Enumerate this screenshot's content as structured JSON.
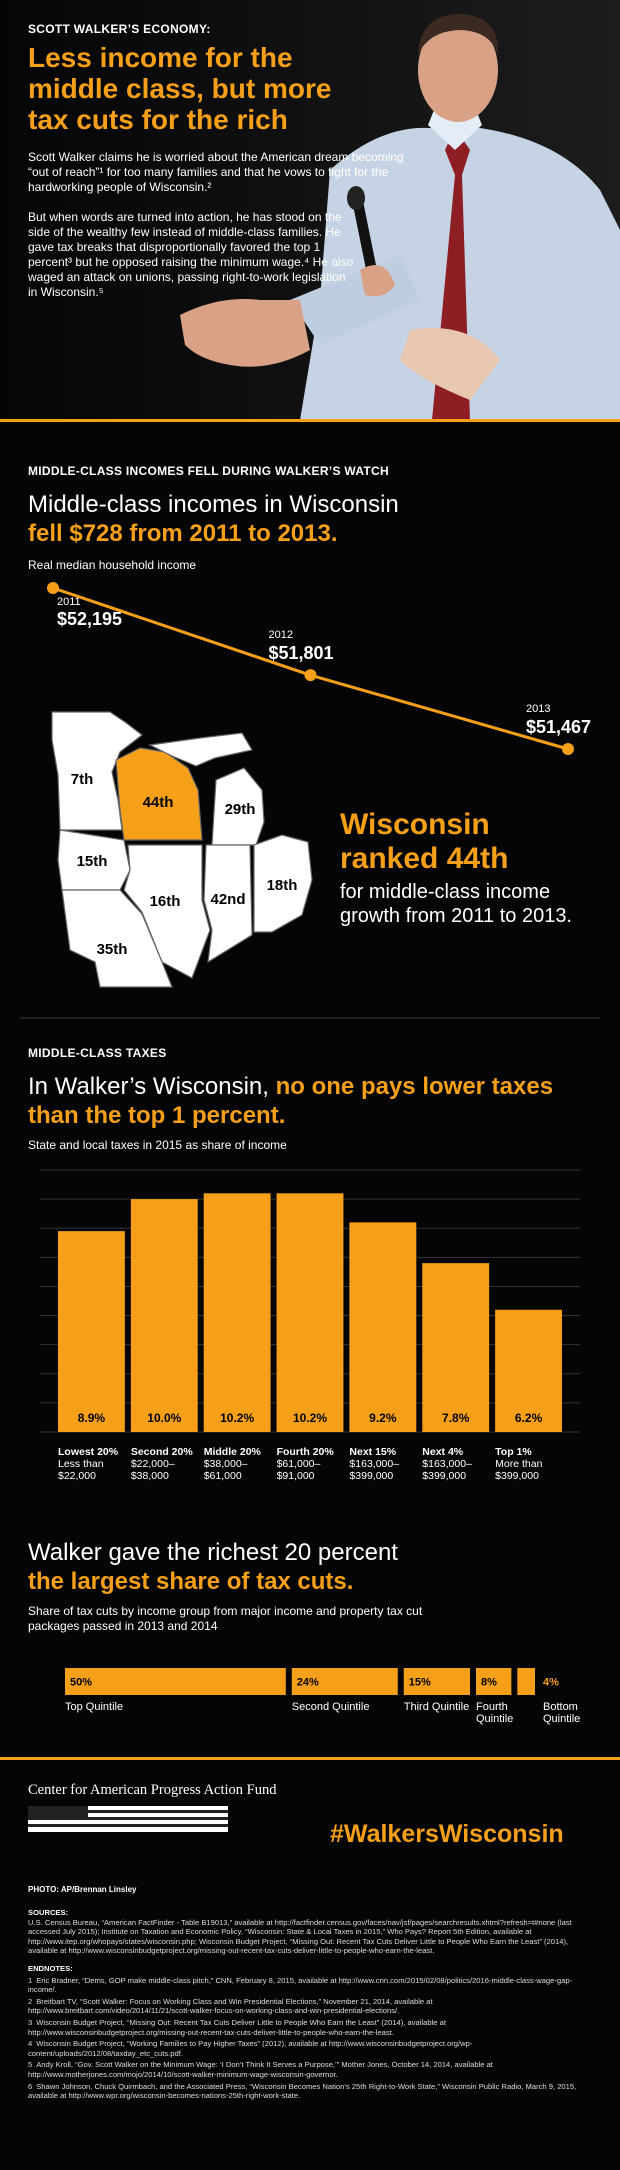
{
  "header": {
    "label": "SCOTT WALKER’S ECONOMY:",
    "title": "Less income for the middle class, but more tax cuts for the rich",
    "paragraphs": [
      "Scott Walker claims he is worried about the American dream becoming “out of reach”¹ for too many families and that he vows to fight for the hardworking people of Wisconsin.²",
      "But when words are turned into action, he has stood on the side of the wealthy few instead of middle-class families. He gave tax breaks that disproportionally favored the top 1 percent³ but he opposed raising the minimum wage.⁴ He also waged an attack on unions, passing right-to-work legislation in Wisconsin.⁵"
    ]
  },
  "chart_data": [
    {
      "type": "line",
      "section_label": "MIDDLE-CLASS INCOMES FELL DURING WALKER’S WATCH",
      "title": "Middle-class incomes in Wisconsin",
      "title_emphasis": "fell $728 from 2011 to 2013.",
      "subtitle": "Real median household income",
      "x": [
        "2011",
        "2012",
        "2013"
      ],
      "values": [
        52195,
        51801,
        51467
      ],
      "value_labels": [
        "$52,195",
        "$51,801",
        "$51,467"
      ],
      "color": "#f6a01a"
    },
    {
      "type": "bar",
      "section_label": "MIDDLE-CLASS TAXES",
      "title": "In Walker’s Wisconsin,",
      "title_emphasis": "no one pays lower taxes than the top 1 percent.",
      "subtitle": "State and local taxes in 2015 as share of income",
      "categories": [
        "Lowest 20%",
        "Second 20%",
        "Middle 20%",
        "Fourth 20%",
        "Next 15%",
        "Next 4%",
        "Top 1%"
      ],
      "category_ranges": [
        "Less than $22,000",
        "$22,000–$38,000",
        "$38,000–$61,000",
        "$61,000–$91,000",
        "$163,000–$399,000",
        "$163,000–$399,000",
        "More than $399,000"
      ],
      "values": [
        8.9,
        10.0,
        10.2,
        10.2,
        9.2,
        7.8,
        6.2
      ],
      "value_labels": [
        "8.9%",
        "10.0%",
        "10.2%",
        "10.2%",
        "9.2%",
        "7.8%",
        "6.2%"
      ],
      "color": "#f6a01a",
      "ylim": [
        2,
        11
      ],
      "yticks": [
        2,
        3,
        4,
        5,
        6,
        7,
        8,
        9,
        10,
        11
      ],
      "grid": true
    },
    {
      "type": "stackedbar",
      "title": "Walker gave the richest 20 percent",
      "title_emphasis": "the largest share of tax cuts.",
      "subtitle": "Share of tax cuts by income group from major income and property tax cut packages passed in 2013 and 2014",
      "series": [
        {
          "name": "Top Quintile",
          "color": "#f6a01a",
          "values": [
            50
          ],
          "value_labels": [
            "50%"
          ]
        },
        {
          "name": "Second Quintile",
          "color": "#f6a01a",
          "values": [
            24
          ],
          "value_labels": [
            "24%"
          ]
        },
        {
          "name": "Third Quintile",
          "color": "#f6a01a",
          "values": [
            15
          ],
          "value_labels": [
            "15%"
          ]
        },
        {
          "name": "Fourth Quintile",
          "color": "#f6a01a",
          "values": [
            8
          ],
          "value_labels": [
            "8%"
          ]
        },
        {
          "name": "Bottom Quintile",
          "color": "#f6a01a",
          "values": [
            4
          ],
          "value_labels": [
            "4%"
          ]
        }
      ]
    }
  ],
  "map": {
    "ranks": [
      "7th",
      "44th",
      "29th",
      "15th",
      "16th",
      "42nd",
      "18th",
      "35th"
    ],
    "callout_title": "Wisconsin ranked 44th",
    "callout_text": "for middle-class income growth from 2011 to 2013."
  },
  "footer": {
    "logo": "Center for American Progress Action Fund",
    "hashtag": "#WalkersWisconsin",
    "photo_credit": "PHOTO: AP/Brennan Linsley",
    "sources_label": "SOURCES:",
    "sources": "U.S. Census Bureau, “American FactFinder - Table B19013,” available at http://factfinder.census.gov/faces/nav/jsf/pages/searchresults.xhtml?refresh=t#none (last accessed July 2015); Institute on Taxation and Economic Policy, “Wisconsin: State & Local Taxes in 2015,” Who Pays? Report 5th Edition, available at http://www.itep.org/whopays/states/wisconsin.php; Wisconsin Budget Project, “Missing Out: Recent Tax Cuts Deliver Little to People Who Earn the Least” (2014), available at http://www.wisconsinbudgetproject.org/missing-out-recent-tax-cuts-deliver-little-to-people-who-earn-the-least.",
    "endnotes_label": "ENDNOTES:",
    "endnotes": [
      {
        "number": 1,
        "text": "Eric Bradner, “Dems, GOP make middle-class pitch,” CNN, February 8, 2015, available at http://www.cnn.com/2015/02/08/politics/2016-middle-class-wage-gap-income/."
      },
      {
        "number": 2,
        "text": "Breitbart TV, “Scott Walker: Focus on Working Class and Win Presidential Elections,” November 21, 2014, available at http://www.breitbart.com/video/2014/11/21/scott-walker-focus-on-working-class-and-win-presidential-elections/."
      },
      {
        "number": 3,
        "text": "Wisconsin Budget Project, “Missing Out: Recent Tax Cuts Deliver Little to People Who Earn the Least” (2014), available at http://www.wisconsinbudgetproject.org/missing-out-recent-tax-cuts-deliver-little-to-people-who-earn-the-least."
      },
      {
        "number": 4,
        "text": "Wisconsin Budget Project, “Working Families to Pay Higher Taxes” (2012), available at http://www.wisconsinbudgetproject.org/wp-content/uploads/2012/08/taxday_etc_cuts.pdf."
      },
      {
        "number": 5,
        "text": "Andy Kroll, “Gov. Scott Walker on the Minimum Wage: ‘I Don’t Think It Serves a Purpose,’” Mother Jones, October 14, 2014, available at http://www.motherjones.com/mojo/2014/10/scott-walker-minimum-wage-wisconsin-governor."
      },
      {
        "number": 6,
        "text": "Shawn Johnson, Chuck Quirmbach, and the Associated Press, “Wisconsin Becomes Nation’s 25th Right-to-Work State,” Wisconsin Public Radio, March 9, 2015, available at http://www.wpr.org/wisconsin-becomes-nations-25th-right-work-state."
      }
    ]
  }
}
